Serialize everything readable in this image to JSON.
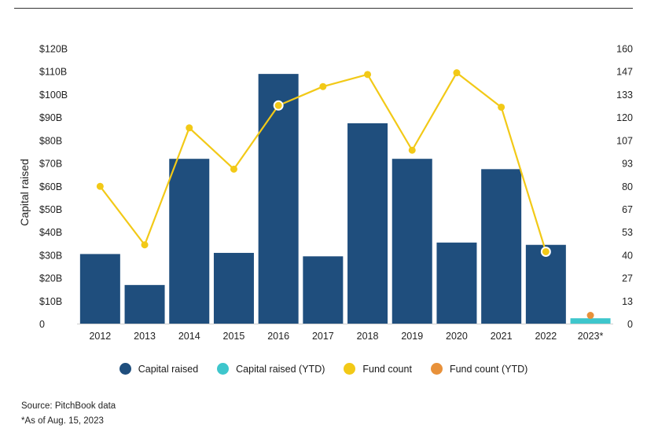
{
  "chart_data": {
    "type": "bar",
    "categories": [
      "2012",
      "2013",
      "2014",
      "2015",
      "2016",
      "2017",
      "2018",
      "2019",
      "2020",
      "2021",
      "2022",
      "2023*"
    ],
    "series": [
      {
        "name": "Capital raised",
        "kind": "bar",
        "axis": "left",
        "color": "#1f4e7d",
        "values": [
          30.5,
          17,
          72,
          31,
          109,
          29.5,
          87.5,
          72,
          35.5,
          67.5,
          34.5,
          null
        ]
      },
      {
        "name": "Capital raised (YTD)",
        "kind": "bar",
        "axis": "left",
        "color": "#3ec6cc",
        "values": [
          null,
          null,
          null,
          null,
          null,
          null,
          null,
          null,
          null,
          null,
          null,
          2.5
        ]
      },
      {
        "name": "Fund count",
        "kind": "line",
        "axis": "right",
        "color": "#f2c917",
        "values": [
          80,
          46,
          114,
          90,
          127,
          138,
          145,
          101,
          146,
          126,
          42,
          null
        ],
        "highlighted": [
          false,
          false,
          false,
          false,
          true,
          false,
          false,
          false,
          false,
          false,
          true,
          false
        ]
      },
      {
        "name": "Fund count (YTD)",
        "kind": "point",
        "axis": "right",
        "color": "#e8913a",
        "values": [
          null,
          null,
          null,
          null,
          null,
          null,
          null,
          null,
          null,
          null,
          null,
          5
        ]
      }
    ],
    "ylabel": "Capital raised",
    "ylim": [
      0,
      120
    ],
    "y_ticks": [
      "0",
      "$10B",
      "$20B",
      "$30B",
      "$40B",
      "$50B",
      "$60B",
      "$70B",
      "$80B",
      "$90B",
      "$100B",
      "$110B",
      "$120B"
    ],
    "y2lim": [
      0,
      160
    ],
    "y2_ticks": [
      "0",
      "13",
      "27",
      "40",
      "53",
      "67",
      "80",
      "93",
      "107",
      "120",
      "133",
      "147",
      "160"
    ],
    "grid": false,
    "legend_position": "bottom"
  },
  "legend": [
    {
      "label": "Capital raised",
      "color": "#1f4e7d"
    },
    {
      "label": "Capital raised (YTD)",
      "color": "#3ec6cc"
    },
    {
      "label": "Fund count",
      "color": "#f2c917"
    },
    {
      "label": "Fund count (YTD)",
      "color": "#e8913a"
    }
  ],
  "footnotes": {
    "source": "Source: PitchBook data",
    "as_of": "*As of Aug. 15, 2023"
  }
}
